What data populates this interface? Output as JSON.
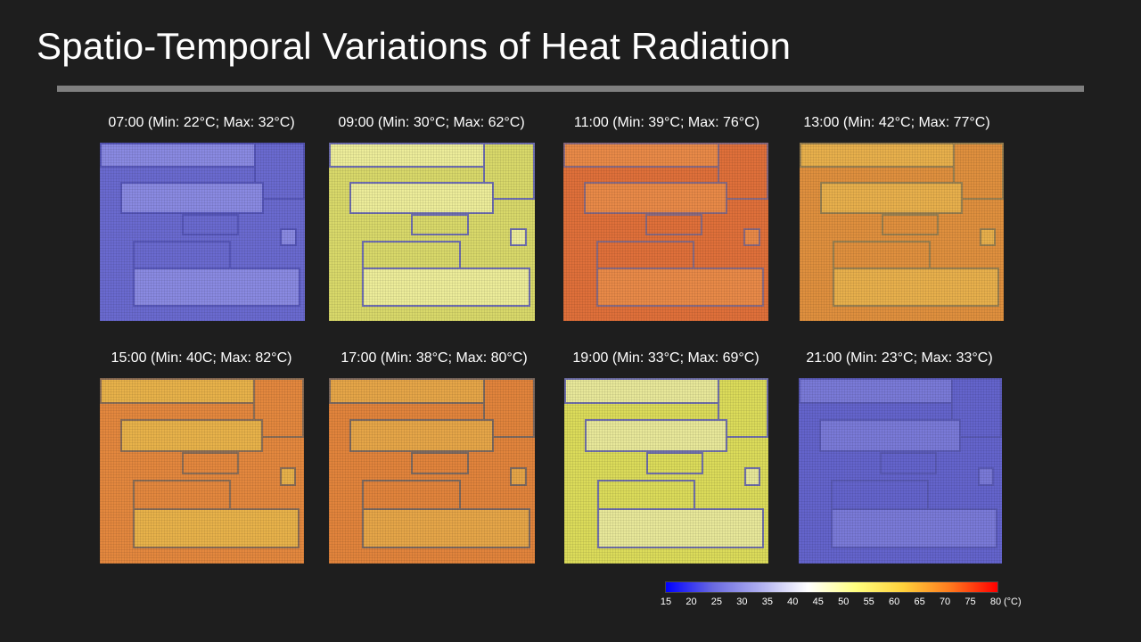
{
  "slide": {
    "title": "Spatio-Temporal Variations of Heat Radiation"
  },
  "panels": [
    {
      "caption": "07:00 (Min: 22°C; Max: 32°C)",
      "base": "#6a6ad0",
      "alt": "#8a8ae2",
      "edge": "#5656b8"
    },
    {
      "caption": "09:00 (Min: 30°C; Max: 62°C)",
      "base": "#d9d96a",
      "alt": "#eded9a",
      "edge": "#6f6fb0"
    },
    {
      "caption": "11:00 (Min: 39°C; Max: 76°C)",
      "base": "#e0703a",
      "alt": "#e98a48",
      "edge": "#8a6a80"
    },
    {
      "caption": "13:00 (Min: 42°C; Max: 77°C)",
      "base": "#e0903e",
      "alt": "#e8b04c",
      "edge": "#9a8050"
    },
    {
      "caption": "15:00 (Min: 40C; Max: 82°C)",
      "base": "#e4883e",
      "alt": "#e8b24a",
      "edge": "#8c6e56"
    },
    {
      "caption": "17:00 (Min: 38°C; Max: 80°C)",
      "base": "#e2843c",
      "alt": "#e6a648",
      "edge": "#7e6a60"
    },
    {
      "caption": "19:00 (Min: 33°C; Max: 69°C)",
      "base": "#dcdc5a",
      "alt": "#e8e89a",
      "edge": "#7070aa"
    },
    {
      "caption": "21:00 (Min: 23°C; Max: 33°C)",
      "base": "#6464cc",
      "alt": "#7a7ad8",
      "edge": "#5a5ab6"
    }
  ],
  "colorbar": {
    "ticks": [
      "15",
      "20",
      "25",
      "30",
      "35",
      "40",
      "45",
      "50",
      "55",
      "60",
      "65",
      "70",
      "75",
      "80"
    ],
    "unit": "(°C)",
    "min": 15,
    "max": 80,
    "stops": [
      "#0000ff",
      "#6a6ae0",
      "#b0b0f0",
      "#ffffff",
      "#ffff80",
      "#ffd23c",
      "#ff7a1e",
      "#ff0000"
    ]
  }
}
